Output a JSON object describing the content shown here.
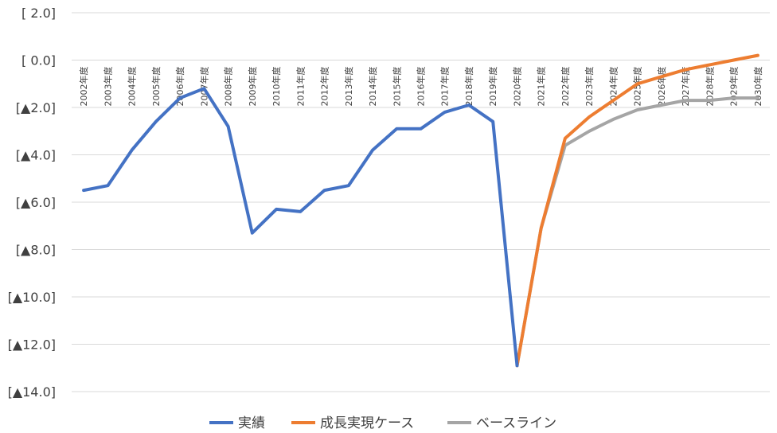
{
  "chart_data": {
    "type": "line",
    "categories": [
      "2002年度",
      "2003年度",
      "2004年度",
      "2005年度",
      "2006年度",
      "2007年度",
      "2008年度",
      "2009年度",
      "2010年度",
      "2011年度",
      "2012年度",
      "2013年度",
      "2014年度",
      "2015年度",
      "2016年度",
      "2017年度",
      "2018年度",
      "2019年度",
      "2020年度",
      "2021年度",
      "2022年度",
      "2023年度",
      "2024年度",
      "2025年度",
      "2026年度",
      "2027年度",
      "2028年度",
      "2029年度",
      "2030年度"
    ],
    "ylim": [
      -14.0,
      2.0
    ],
    "ytick_values": [
      2,
      0,
      -2,
      -4,
      -6,
      -8,
      -10,
      -12,
      -14
    ],
    "ytick_labels": [
      "[ 2.0]",
      "[ 0.0]",
      "[▲2.0]",
      "[▲4.0]",
      "[▲6.0]",
      "[▲8.0]",
      "[▲10.0]",
      "[▲12.0]",
      "[▲14.0]"
    ],
    "grid": true,
    "legend_position": "bottom",
    "series": [
      {
        "name": "実績",
        "color": "#4472c4",
        "values": [
          -5.5,
          -5.3,
          -3.8,
          -2.6,
          -1.6,
          -1.2,
          -2.8,
          -7.3,
          -6.3,
          -6.4,
          -5.5,
          -5.3,
          -3.8,
          -2.9,
          -2.9,
          -2.2,
          -1.9,
          -2.6,
          -12.9,
          null,
          null,
          null,
          null,
          null,
          null,
          null,
          null,
          null,
          null
        ]
      },
      {
        "name": "成長実現ケース",
        "color": "#ed7d31",
        "values": [
          null,
          null,
          null,
          null,
          null,
          null,
          null,
          null,
          null,
          null,
          null,
          null,
          null,
          null,
          null,
          null,
          null,
          null,
          -12.9,
          -7.1,
          -3.3,
          -2.4,
          -1.7,
          -1.0,
          -0.7,
          -0.4,
          -0.2,
          0.0,
          0.2
        ]
      },
      {
        "name": "ベースライン",
        "color": "#a5a5a5",
        "values": [
          null,
          null,
          null,
          null,
          null,
          null,
          null,
          null,
          null,
          null,
          null,
          null,
          null,
          null,
          null,
          null,
          null,
          null,
          -12.9,
          -7.1,
          -3.6,
          -3.0,
          -2.5,
          -2.1,
          -1.9,
          -1.7,
          -1.7,
          -1.6,
          -1.6
        ]
      }
    ]
  }
}
